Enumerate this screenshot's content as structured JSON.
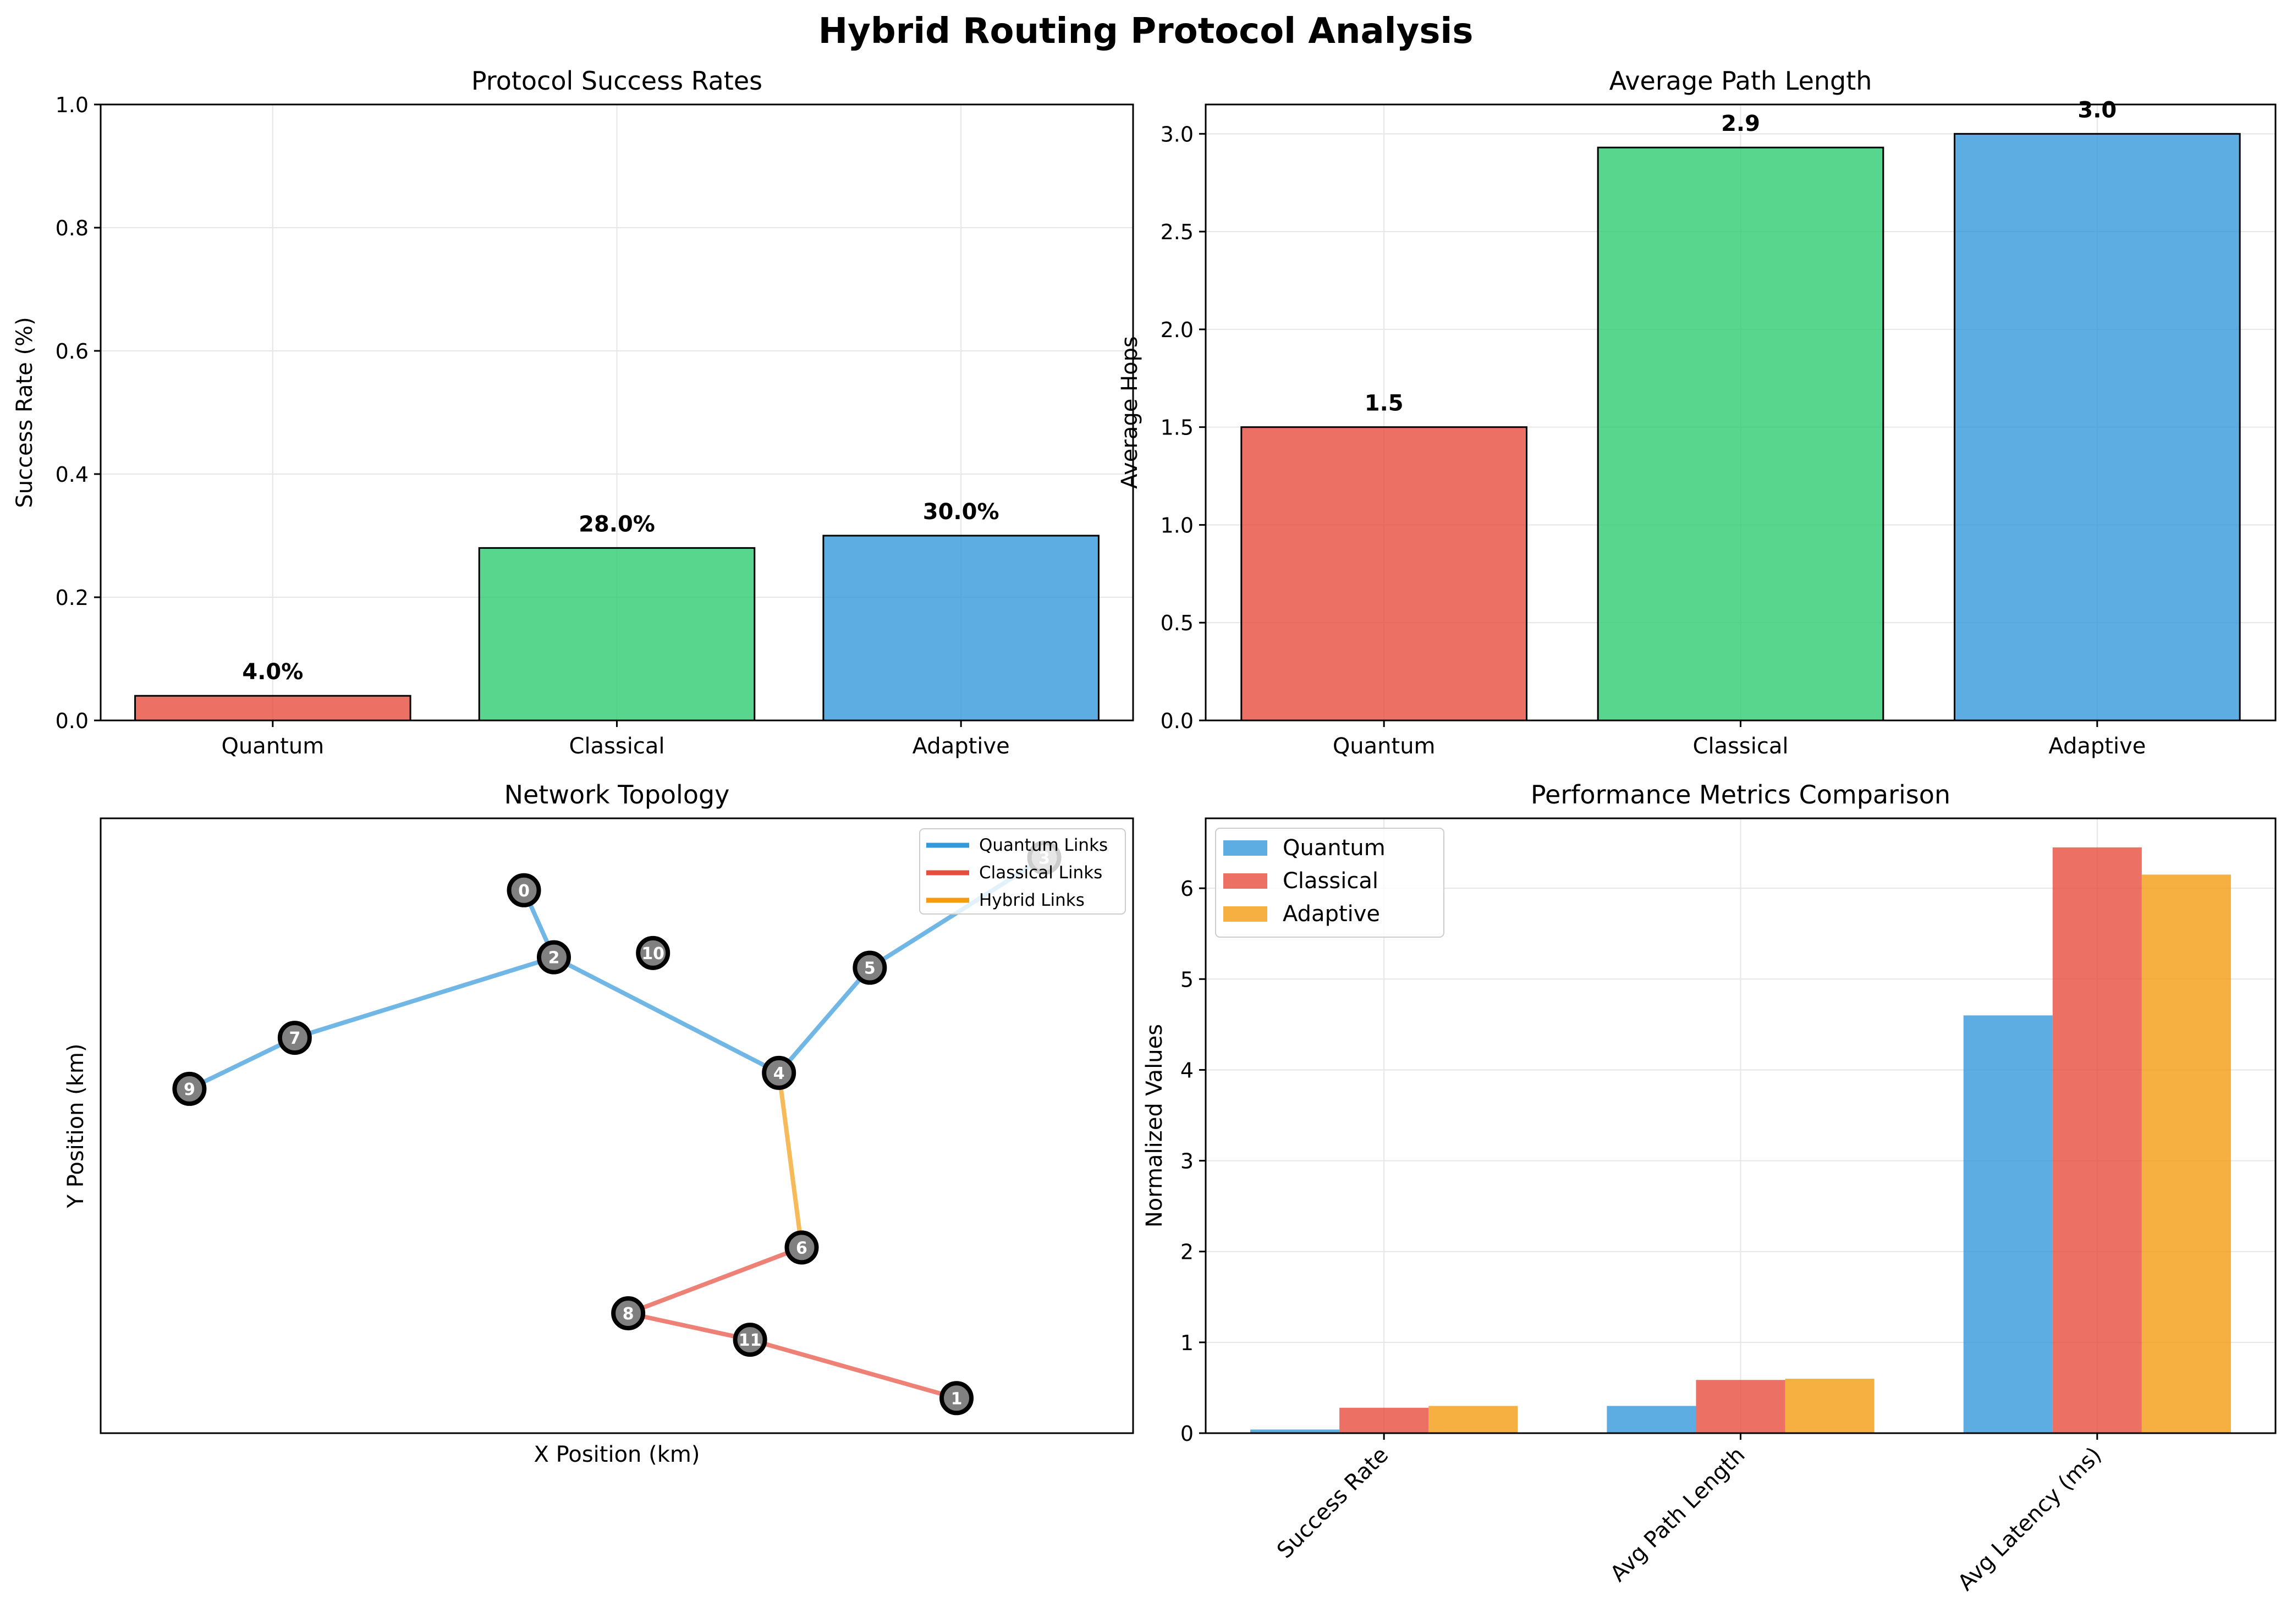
{
  "figure": {
    "title": "Hybrid Routing Protocol Analysis"
  },
  "colors": {
    "quantum": "#e74c3c",
    "classical": "#2ecc71",
    "adaptive": "#3498db",
    "series_quantum": "#3498db",
    "series_classical": "#e74c3c",
    "series_adaptive": "#f39c12",
    "quantum_link": "#3498db",
    "classical_link": "#e74c3c",
    "hybrid_link": "#f39c12",
    "node_fill": "#808080",
    "grid": "#e6e6e6"
  },
  "chart_data": [
    {
      "type": "bar",
      "title": "Protocol Success Rates",
      "xlabel": "",
      "ylabel": "Success Rate (%)",
      "categories": [
        "Quantum",
        "Classical",
        "Adaptive"
      ],
      "values": [
        0.04,
        0.28,
        0.3
      ],
      "data_labels": [
        "4.0%",
        "28.0%",
        "30.0%"
      ],
      "ylim": [
        0,
        1.0
      ],
      "yticks": [
        "0.0",
        "0.2",
        "0.4",
        "0.6",
        "0.8",
        "1.0"
      ],
      "grid": true
    },
    {
      "type": "bar",
      "title": "Average Path Length",
      "xlabel": "",
      "ylabel": "Average Hops",
      "categories": [
        "Quantum",
        "Classical",
        "Adaptive"
      ],
      "values": [
        1.5,
        2.93,
        3.0
      ],
      "data_labels": [
        "1.5",
        "2.9",
        "3.0"
      ],
      "ylim": [
        0,
        3.15
      ],
      "yticks": [
        "0.0",
        "0.5",
        "1.0",
        "1.5",
        "2.0",
        "2.5",
        "3.0"
      ],
      "grid": true
    },
    {
      "type": "scatter",
      "title": "Network Topology",
      "xlabel": "X Position (km)",
      "ylabel": "Y Position (km)",
      "grid": false,
      "legend": {
        "placement": "top-right",
        "items": [
          "Quantum Links",
          "Classical Links",
          "Hybrid Links"
        ]
      },
      "nodes": [
        {
          "id": "0",
          "x": 0.41,
          "y": 0.883
        },
        {
          "id": "1",
          "x": 0.829,
          "y": 0.057
        },
        {
          "id": "2",
          "x": 0.439,
          "y": 0.774
        },
        {
          "id": "3",
          "x": 0.914,
          "y": 0.936
        },
        {
          "id": "4",
          "x": 0.657,
          "y": 0.586
        },
        {
          "id": "5",
          "x": 0.745,
          "y": 0.757
        },
        {
          "id": "6",
          "x": 0.679,
          "y": 0.302
        },
        {
          "id": "7",
          "x": 0.188,
          "y": 0.643
        },
        {
          "id": "8",
          "x": 0.511,
          "y": 0.195
        },
        {
          "id": "9",
          "x": 0.086,
          "y": 0.56
        },
        {
          "id": "10",
          "x": 0.535,
          "y": 0.781
        },
        {
          "id": "11",
          "x": 0.629,
          "y": 0.152
        }
      ],
      "edges": [
        {
          "from": "0",
          "to": "2",
          "type": "quantum"
        },
        {
          "from": "9",
          "to": "7",
          "type": "quantum"
        },
        {
          "from": "7",
          "to": "2",
          "type": "quantum"
        },
        {
          "from": "2",
          "to": "4",
          "type": "quantum"
        },
        {
          "from": "4",
          "to": "5",
          "type": "quantum"
        },
        {
          "from": "5",
          "to": "3",
          "type": "quantum"
        },
        {
          "from": "4",
          "to": "6",
          "type": "hybrid"
        },
        {
          "from": "6",
          "to": "8",
          "type": "classical"
        },
        {
          "from": "8",
          "to": "11",
          "type": "classical"
        },
        {
          "from": "11",
          "to": "1",
          "type": "classical"
        }
      ]
    },
    {
      "type": "bar",
      "title": "Performance Metrics Comparison",
      "xlabel": "",
      "ylabel": "Normalized Values",
      "categories": [
        "Success Rate",
        "Avg Path Length",
        "Avg Latency (ms)"
      ],
      "series": [
        {
          "name": "Quantum",
          "values": [
            0.04,
            0.3,
            4.6
          ]
        },
        {
          "name": "Classical",
          "values": [
            0.28,
            0.586,
            6.45
          ]
        },
        {
          "name": "Adaptive",
          "values": [
            0.3,
            0.6,
            6.15
          ]
        }
      ],
      "ylim": [
        0,
        6.77
      ],
      "yticks": [
        "0",
        "1",
        "2",
        "3",
        "4",
        "5",
        "6"
      ],
      "legend": {
        "placement": "top-left"
      },
      "grid": true
    }
  ]
}
